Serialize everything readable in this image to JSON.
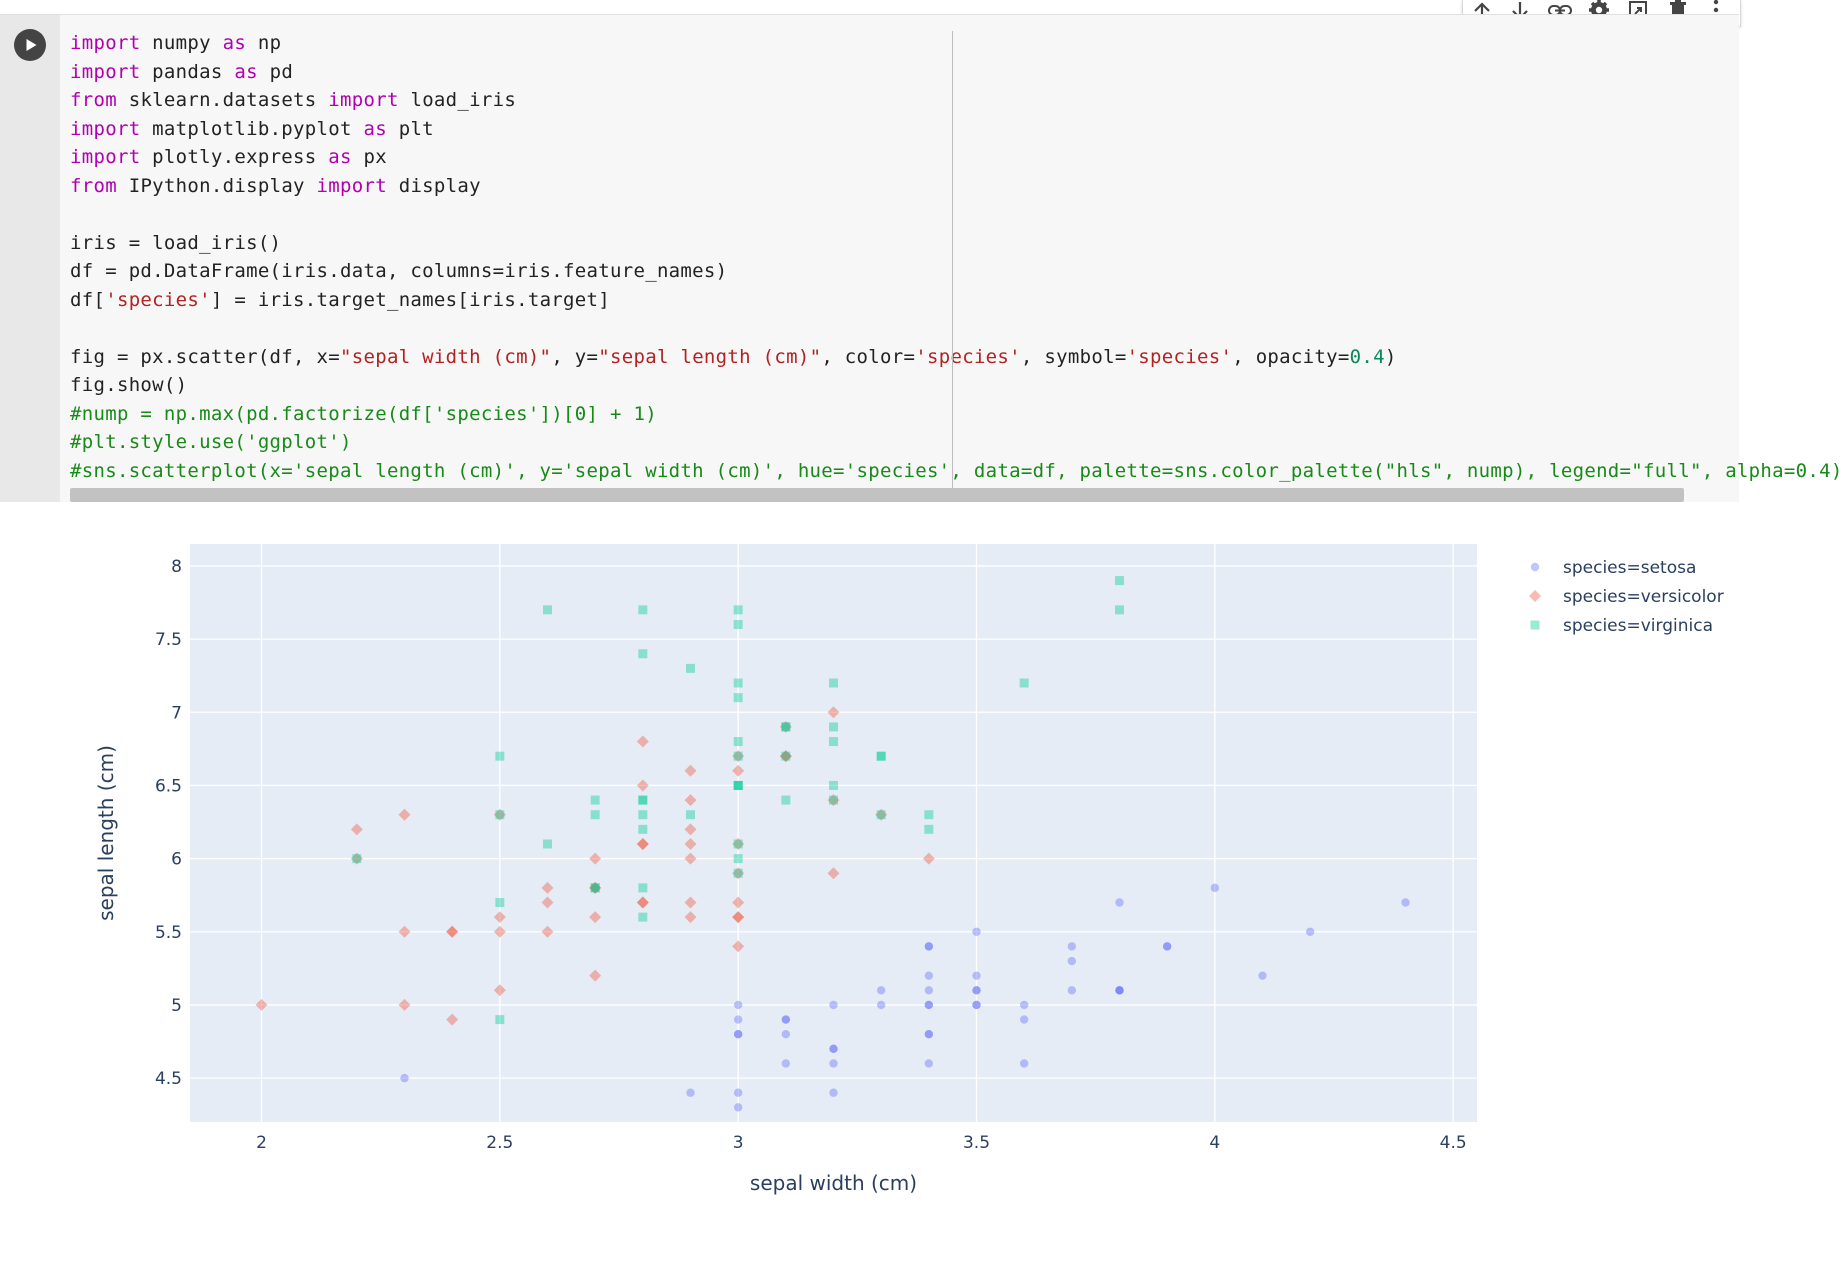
{
  "toolbar": {
    "items": [
      "move-up",
      "move-down",
      "link",
      "settings",
      "mirror-cell",
      "delete",
      "more"
    ]
  },
  "code_lines": [
    [
      {
        "t": "import",
        "c": "kw"
      },
      {
        "t": " numpy "
      },
      {
        "t": "as",
        "c": "kw"
      },
      {
        "t": " np"
      }
    ],
    [
      {
        "t": "import",
        "c": "kw"
      },
      {
        "t": " pandas "
      },
      {
        "t": "as",
        "c": "kw"
      },
      {
        "t": " pd"
      }
    ],
    [
      {
        "t": "from",
        "c": "kw"
      },
      {
        "t": " sklearn.datasets "
      },
      {
        "t": "import",
        "c": "kw"
      },
      {
        "t": " load_iris"
      }
    ],
    [
      {
        "t": "import",
        "c": "kw"
      },
      {
        "t": " matplotlib.pyplot "
      },
      {
        "t": "as",
        "c": "kw"
      },
      {
        "t": " plt"
      }
    ],
    [
      {
        "t": "import",
        "c": "kw"
      },
      {
        "t": " plotly.express "
      },
      {
        "t": "as",
        "c": "kw"
      },
      {
        "t": " px"
      }
    ],
    [
      {
        "t": "from",
        "c": "kw"
      },
      {
        "t": " IPython.display "
      },
      {
        "t": "import",
        "c": "kw"
      },
      {
        "t": " display"
      }
    ],
    [],
    [
      {
        "t": "iris = load_iris()"
      }
    ],
    [
      {
        "t": "df = pd.DataFrame(iris.data, columns=iris.feature_names)"
      }
    ],
    [
      {
        "t": "df["
      },
      {
        "t": "'species'",
        "c": "str"
      },
      {
        "t": "] = iris.target_names[iris.target]"
      }
    ],
    [],
    [
      {
        "t": "fig = px.scatter(df, x="
      },
      {
        "t": "\"sepal width (cm)\"",
        "c": "str"
      },
      {
        "t": ", y="
      },
      {
        "t": "\"sepal length (cm)\"",
        "c": "str"
      },
      {
        "t": ", color="
      },
      {
        "t": "'species'",
        "c": "str"
      },
      {
        "t": ", symbol="
      },
      {
        "t": "'species'",
        "c": "str"
      },
      {
        "t": ", opacity="
      },
      {
        "t": "0.4",
        "c": "num"
      },
      {
        "t": ")"
      }
    ],
    [
      {
        "t": "fig.show()"
      }
    ],
    [
      {
        "t": "#nump = np.max(pd.factorize(df['species'])[0] + 1)",
        "c": "cm"
      }
    ],
    [
      {
        "t": "#plt.style.use('ggplot')",
        "c": "cm"
      }
    ],
    [
      {
        "t": "#sns.scatterplot(x='sepal length (cm)', y='sepal width (cm)', hue='species', data=df, palette=sns.color_palette(\"hls\", nump), legend=\"full\", alpha=0.4)",
        "c": "cm"
      }
    ]
  ],
  "chart_data": {
    "type": "scatter",
    "xlabel": "sepal width (cm)",
    "ylabel": "sepal length (cm)",
    "xlim": [
      1.85,
      4.55
    ],
    "ylim": [
      4.2,
      8.15
    ],
    "xticks": [
      2,
      2.5,
      3,
      3.5,
      4,
      4.5
    ],
    "xtick_labels": [
      "2",
      "2.5",
      "3",
      "3.5",
      "4",
      "4.5"
    ],
    "yticks": [
      4.5,
      5,
      5.5,
      6,
      6.5,
      7,
      7.5,
      8
    ],
    "ytick_labels": [
      "4.5",
      "5",
      "5.5",
      "6",
      "6.5",
      "7",
      "7.5",
      "8"
    ],
    "opacity": 0.4,
    "grid": true,
    "legend_position": "right",
    "plot_bg": "#e5ecf6",
    "series": [
      {
        "name": "species=setosa",
        "symbol": "circle",
        "color": "#636efa",
        "x": [
          3.5,
          3.0,
          3.2,
          3.1,
          3.6,
          3.9,
          3.4,
          3.4,
          2.9,
          3.1,
          3.7,
          3.4,
          3.0,
          3.0,
          4.0,
          4.4,
          3.9,
          3.5,
          3.8,
          3.8,
          3.4,
          3.7,
          3.6,
          3.3,
          3.4,
          3.0,
          3.4,
          3.5,
          3.4,
          3.2,
          3.1,
          3.4,
          4.1,
          4.2,
          3.1,
          3.2,
          3.5,
          3.6,
          3.0,
          3.4,
          3.5,
          2.3,
          3.2,
          3.5,
          3.8,
          3.0,
          3.8,
          3.2,
          3.7,
          3.3
        ],
        "y": [
          5.1,
          4.9,
          4.7,
          4.6,
          5.0,
          5.4,
          4.6,
          5.0,
          4.4,
          4.9,
          5.4,
          4.8,
          4.8,
          4.3,
          5.8,
          5.7,
          5.4,
          5.1,
          5.7,
          5.1,
          5.4,
          5.1,
          4.6,
          5.1,
          4.8,
          5.0,
          5.0,
          5.2,
          5.2,
          4.7,
          4.8,
          5.4,
          5.2,
          5.5,
          4.9,
          5.0,
          5.5,
          4.9,
          4.4,
          5.1,
          5.0,
          4.5,
          4.4,
          5.0,
          5.1,
          4.8,
          5.1,
          4.6,
          5.3,
          5.0
        ]
      },
      {
        "name": "species=versicolor",
        "symbol": "diamond",
        "color": "#ef553b",
        "x": [
          3.2,
          3.2,
          3.1,
          2.3,
          2.8,
          2.8,
          3.3,
          2.4,
          2.9,
          2.7,
          2.0,
          3.0,
          2.2,
          2.9,
          2.9,
          3.1,
          3.0,
          2.7,
          2.2,
          2.5,
          3.2,
          2.8,
          2.5,
          2.8,
          2.9,
          3.0,
          2.8,
          3.0,
          2.9,
          2.6,
          2.4,
          2.4,
          2.7,
          2.7,
          3.0,
          3.4,
          3.1,
          2.3,
          3.0,
          2.5,
          2.6,
          3.0,
          2.6,
          2.3,
          2.7,
          3.0,
          2.9,
          2.9,
          2.5,
          2.8
        ],
        "y": [
          7.0,
          6.4,
          6.9,
          5.5,
          6.5,
          5.7,
          6.3,
          4.9,
          6.6,
          5.2,
          5.0,
          5.9,
          6.0,
          6.1,
          5.6,
          6.7,
          5.6,
          5.8,
          6.2,
          5.6,
          5.9,
          6.1,
          6.3,
          6.1,
          6.4,
          6.6,
          6.8,
          6.7,
          6.0,
          5.7,
          5.5,
          5.5,
          5.8,
          6.0,
          5.4,
          6.0,
          6.7,
          6.3,
          5.6,
          5.5,
          5.5,
          6.1,
          5.8,
          5.0,
          5.6,
          5.7,
          5.7,
          6.2,
          5.1,
          5.7
        ]
      },
      {
        "name": "species=virginica",
        "symbol": "square",
        "color": "#00cc96",
        "x": [
          3.3,
          2.7,
          3.0,
          2.9,
          3.0,
          3.0,
          2.5,
          2.9,
          2.5,
          3.6,
          3.2,
          2.7,
          3.0,
          2.5,
          2.8,
          3.2,
          3.0,
          3.8,
          2.6,
          2.2,
          3.2,
          2.8,
          2.8,
          2.7,
          3.3,
          3.2,
          2.8,
          3.0,
          2.8,
          3.0,
          2.8,
          3.8,
          2.8,
          2.8,
          2.6,
          3.0,
          3.4,
          3.1,
          3.0,
          3.1,
          3.1,
          3.1,
          2.7,
          3.2,
          3.3,
          3.0,
          2.5,
          3.0,
          3.4,
          3.0
        ],
        "y": [
          6.3,
          5.8,
          7.1,
          6.3,
          6.5,
          7.6,
          4.9,
          7.3,
          6.7,
          7.2,
          6.5,
          6.4,
          6.8,
          5.7,
          5.8,
          6.4,
          6.5,
          7.7,
          7.7,
          6.0,
          6.9,
          5.6,
          7.7,
          6.3,
          6.7,
          7.2,
          6.2,
          6.1,
          6.4,
          7.2,
          7.4,
          7.9,
          6.4,
          6.3,
          6.1,
          7.7,
          6.3,
          6.4,
          6.0,
          6.9,
          6.7,
          6.9,
          5.8,
          6.8,
          6.7,
          6.7,
          6.3,
          6.5,
          6.2,
          5.9
        ]
      }
    ]
  }
}
